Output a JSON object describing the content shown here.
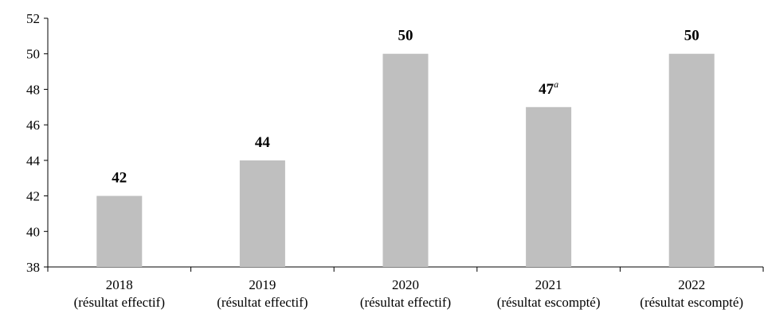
{
  "chart_data": {
    "type": "bar",
    "categories": [
      [
        "2018",
        "(résultat effectif)"
      ],
      [
        "2019",
        "(résultat effectif)"
      ],
      [
        "2020",
        "(résultat effectif)"
      ],
      [
        "2021",
        "(résultat escompté)"
      ],
      [
        "2022",
        "(résultat escompté)"
      ]
    ],
    "values": [
      42,
      44,
      50,
      47,
      50
    ],
    "data_labels": [
      "42",
      "44",
      "50",
      "47",
      "50"
    ],
    "data_label_superscripts": [
      "",
      "",
      "",
      "a",
      ""
    ],
    "title": "",
    "xlabel": "",
    "ylabel": "",
    "ylim": [
      38,
      52
    ],
    "yticks": [
      38,
      40,
      42,
      44,
      46,
      48,
      50,
      52
    ],
    "grid": false,
    "legend": "none",
    "bar_color": "#bfbfbf"
  }
}
